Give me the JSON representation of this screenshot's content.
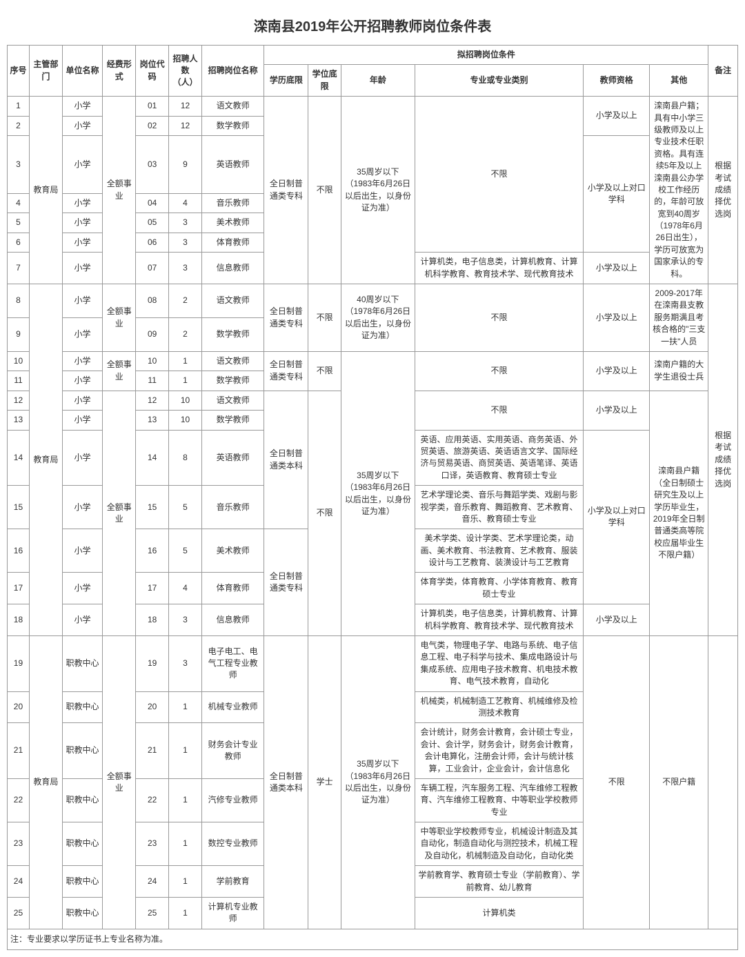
{
  "title": "滦南县2019年公开招聘教师岗位条件表",
  "headers": {
    "seq": "序号",
    "dept": "主管部门",
    "unit": "单位名称",
    "fund": "经费形式",
    "code": "岗位代码",
    "count": "招聘人数（人）",
    "post": "招聘岗位名称",
    "cond": "拟招聘岗位条件",
    "edu": "学历底限",
    "deg": "学位底限",
    "age": "年龄",
    "major": "专业或专业类别",
    "cert": "教师资格",
    "other": "其他",
    "remark": "备注"
  },
  "edu": {
    "zkp": "全日制普通类专科",
    "bk": "全日制普通类本科"
  },
  "deg": {
    "none": "不限",
    "xs": "学士"
  },
  "age": {
    "a35": "35周岁以下（1983年6月26日以后出生，以身份证为准）",
    "a40": "40周岁以下（1978年6月26日以后出生，以身份证为准）"
  },
  "dept": "教育局",
  "fund": "全额事业",
  "unit": {
    "xx": "小学",
    "zj": "职教中心"
  },
  "cert": {
    "xx": "小学及以上",
    "dk": "小学及以上对口学科",
    "none": "不限"
  },
  "major": {
    "none": "不限",
    "info": "计算机类，电子信息类，计算机教育、计算机科学教育、教育技术学、现代教育技术",
    "eng": "英语、应用英语、实用英语、商务英语、外贸英语、旅游英语、英语语言文学、国际经济与贸易英语、商贸英语、英语笔译、英语口译，英语教育、教育硕士专业",
    "music": "艺术学理论类、音乐与舞蹈学类、戏剧与影视学类，音乐教育、舞蹈教育、艺术教育、音乐、教育硕士专业",
    "art": "美术学类、设计学类、艺术学理论类，动画、美术教育、书法教育、艺术教育、服装设计与工艺教育、装潢设计与工艺教育",
    "pe": "体育学类，体育教育、小学体育教育、教育硕士专业",
    "elec": "电气类，物理电子学、电路与系统、电子信息工程、电子科学与技术、集成电路设计与集成系统、应用电子技术教育、机电技术教育、电气技术教育，自动化",
    "mech": "机械类，机械制造工艺教育、机械维修及检测技术教育",
    "acct": "会计统计，财务会计教育，会计硕士专业，会计、会计学，财务会计，财务会计教育，会计电算化，注册会计师，会计与统计核算，工业会计，企业会计，会计信息化",
    "auto": "车辆工程，汽车服务工程、汽车维修工程教育、汽车维修工程教育、中等职业学校教师专业",
    "nc": "中等职业学校教师专业，机械设计制造及其自动化，制造自动化与测控技术，机械工程及自动化，机械制造及自动化，自动化类",
    "pre": "学前教育学、教育硕士专业（学前教育）、学前教育、幼儿教育",
    "cs": "计算机类"
  },
  "other": {
    "o1": "滦南县户籍；具有中小学三级教师及以上专业技术任职资格。具有连续5年及以上滦南县公办学校工作经历的，年龄可放宽到40周岁（1978年6月26日出生），学历可放宽为国家承认的专科。",
    "o2": "2009-2017年在滦南县支教服务期满且考核合格的\"三支一扶\"人员",
    "o3": "滦南户籍的大学生退役士兵",
    "o4": "滦南县户籍（全日制硕士研究生及以上学历毕业生，2019年全日制普通类高等院校应届毕业生不限户籍）",
    "o5": "不限户籍"
  },
  "remark": "根据考试成绩择优选岗",
  "rows": [
    {
      "n": "1",
      "u": "xx",
      "c": "01",
      "ct": "12",
      "p": "语文教师"
    },
    {
      "n": "2",
      "u": "xx",
      "c": "02",
      "ct": "12",
      "p": "数学教师"
    },
    {
      "n": "3",
      "u": "xx",
      "c": "03",
      "ct": "9",
      "p": "英语教师"
    },
    {
      "n": "4",
      "u": "xx",
      "c": "04",
      "ct": "4",
      "p": "音乐教师"
    },
    {
      "n": "5",
      "u": "xx",
      "c": "05",
      "ct": "3",
      "p": "美术教师"
    },
    {
      "n": "6",
      "u": "xx",
      "c": "06",
      "ct": "3",
      "p": "体育教师"
    },
    {
      "n": "7",
      "u": "xx",
      "c": "07",
      "ct": "3",
      "p": "信息教师"
    },
    {
      "n": "8",
      "u": "xx",
      "c": "08",
      "ct": "2",
      "p": "语文教师"
    },
    {
      "n": "9",
      "u": "xx",
      "c": "09",
      "ct": "2",
      "p": "数学教师"
    },
    {
      "n": "10",
      "u": "xx",
      "c": "10",
      "ct": "1",
      "p": "语文教师"
    },
    {
      "n": "11",
      "u": "xx",
      "c": "11",
      "ct": "1",
      "p": "数学教师"
    },
    {
      "n": "12",
      "u": "xx",
      "c": "12",
      "ct": "10",
      "p": "语文教师"
    },
    {
      "n": "13",
      "u": "xx",
      "c": "13",
      "ct": "10",
      "p": "数学教师"
    },
    {
      "n": "14",
      "u": "xx",
      "c": "14",
      "ct": "8",
      "p": "英语教师"
    },
    {
      "n": "15",
      "u": "xx",
      "c": "15",
      "ct": "5",
      "p": "音乐教师"
    },
    {
      "n": "16",
      "u": "xx",
      "c": "16",
      "ct": "5",
      "p": "美术教师"
    },
    {
      "n": "17",
      "u": "xx",
      "c": "17",
      "ct": "4",
      "p": "体育教师"
    },
    {
      "n": "18",
      "u": "xx",
      "c": "18",
      "ct": "3",
      "p": "信息教师"
    },
    {
      "n": "19",
      "u": "zj",
      "c": "19",
      "ct": "3",
      "p": "电子电工、电气工程专业教师"
    },
    {
      "n": "20",
      "u": "zj",
      "c": "20",
      "ct": "1",
      "p": "机械专业教师"
    },
    {
      "n": "21",
      "u": "zj",
      "c": "21",
      "ct": "1",
      "p": "财务会计专业教师"
    },
    {
      "n": "22",
      "u": "zj",
      "c": "22",
      "ct": "1",
      "p": "汽修专业教师"
    },
    {
      "n": "23",
      "u": "zj",
      "c": "23",
      "ct": "1",
      "p": "数控专业教师"
    },
    {
      "n": "24",
      "u": "zj",
      "c": "24",
      "ct": "1",
      "p": "学前教育"
    },
    {
      "n": "25",
      "u": "zj",
      "c": "25",
      "ct": "1",
      "p": "计算机专业教师"
    }
  ],
  "footnote": "注：专业要求以学历证书上专业名称为准。"
}
